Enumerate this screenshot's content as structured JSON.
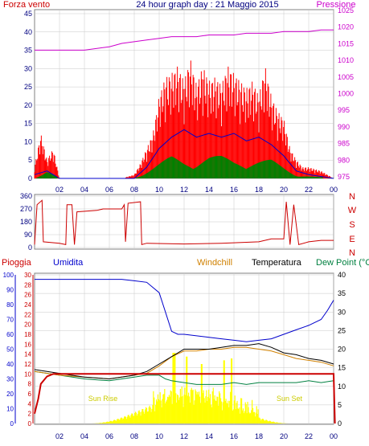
{
  "header": {
    "left": "Forza vento",
    "center": "24 hour graph day : 21 Maggio 2015",
    "right": "Pressione"
  },
  "x_ticks": [
    "02",
    "04",
    "06",
    "08",
    "10",
    "12",
    "14",
    "16",
    "18",
    "20",
    "22",
    "00"
  ],
  "colors": {
    "wind": "#ff0000",
    "gust": "#ff0000",
    "avg": "#0000cc",
    "green": "#008000",
    "pressure": "#cc00cc",
    "dir": "#cc0000",
    "temp": "#000000",
    "windchill": "#d08000",
    "dew": "#008040",
    "humidity": "#0000cc",
    "rain": "#cc0000",
    "sun": "#ffff00",
    "frame": "#c00000",
    "grid": "#c8c8c8",
    "axis_text": "#000080"
  },
  "panels": [
    {
      "id": "wind",
      "left_ticks": [
        "45",
        "40",
        "35",
        "30",
        "25",
        "20",
        "15",
        "10",
        "5",
        "0"
      ],
      "right_ticks": [
        "1025",
        "1020",
        "1015",
        "1010",
        "1005",
        "1000",
        "995",
        "990",
        "985",
        "980",
        "975"
      ]
    },
    {
      "id": "direction",
      "left_ticks": [
        "360",
        "270",
        "180",
        "90",
        "0"
      ],
      "right_letters": [
        "N",
        "W",
        "S",
        "E",
        "N"
      ]
    },
    {
      "id": "meteo",
      "title_pioggia": "Pioggia",
      "title_umidita": "Umidita",
      "title_windchill": "Windchill",
      "title_temperatura": "Temperatura",
      "title_dew": "Dew Point (°C",
      "humidity_ticks": [
        "100",
        "90",
        "80",
        "70",
        "60",
        "50",
        "40",
        "30",
        "20",
        "10",
        "0"
      ],
      "rain_ticks": [
        "30",
        "28",
        "26",
        "24",
        "22",
        "20",
        "18",
        "16",
        "14",
        "12",
        "10",
        "8",
        "6",
        "4",
        "2",
        "0"
      ],
      "temp_ticks": [
        "40",
        "35",
        "30",
        "25",
        "20",
        "15",
        "10",
        "5",
        "0"
      ],
      "annotations": [
        "Sun Rise",
        "Sun Set"
      ]
    }
  ],
  "chart_data": [
    {
      "type": "line",
      "name": "wind_pressure",
      "x_unit": "hour",
      "ylim": [
        0,
        45
      ],
      "y2lim": [
        975,
        1025
      ],
      "series": [
        {
          "name": "Forza vento",
          "points": [
            [
              0,
              3
            ],
            [
              0.5,
              12
            ],
            [
              1,
              5
            ],
            [
              1.5,
              8
            ],
            [
              2,
              0
            ],
            [
              3,
              0
            ],
            [
              5,
              0
            ],
            [
              7,
              0
            ],
            [
              8,
              1
            ],
            [
              8.5,
              4
            ],
            [
              9,
              8
            ],
            [
              9.5,
              12
            ],
            [
              10,
              22
            ],
            [
              10.5,
              27
            ],
            [
              11,
              28
            ],
            [
              11.5,
              30
            ],
            [
              12,
              26
            ],
            [
              12.5,
              32
            ],
            [
              13,
              25
            ],
            [
              13.5,
              30
            ],
            [
              14,
              26
            ],
            [
              14.5,
              27
            ],
            [
              15,
              25
            ],
            [
              15.5,
              30
            ],
            [
              16,
              28
            ],
            [
              16.5,
              26
            ],
            [
              17,
              24
            ],
            [
              17.5,
              26
            ],
            [
              18,
              22
            ],
            [
              18.5,
              30
            ],
            [
              19,
              22
            ],
            [
              19.5,
              18
            ],
            [
              20,
              16
            ],
            [
              20.5,
              8
            ],
            [
              21,
              5
            ],
            [
              21.5,
              3
            ],
            [
              22,
              3
            ],
            [
              23,
              2
            ],
            [
              24,
              0
            ]
          ]
        },
        {
          "name": "Media",
          "points": [
            [
              0,
              1
            ],
            [
              1,
              2
            ],
            [
              2,
              0
            ],
            [
              8,
              0
            ],
            [
              9,
              3
            ],
            [
              10,
              8
            ],
            [
              11,
              11
            ],
            [
              12,
              13
            ],
            [
              13,
              11
            ],
            [
              14,
              12
            ],
            [
              15,
              11
            ],
            [
              16,
              12
            ],
            [
              17,
              10
            ],
            [
              18,
              11
            ],
            [
              19,
              9
            ],
            [
              20,
              6
            ],
            [
              21,
              2
            ],
            [
              22,
              1
            ],
            [
              24,
              0
            ]
          ]
        },
        {
          "name": "Verde",
          "points": [
            [
              0,
              0
            ],
            [
              1,
              2
            ],
            [
              2,
              0
            ],
            [
              8,
              0
            ],
            [
              9,
              2
            ],
            [
              10,
              4
            ],
            [
              11,
              6
            ],
            [
              12,
              5
            ],
            [
              13,
              5
            ],
            [
              14,
              6
            ],
            [
              15,
              6
            ],
            [
              16,
              5
            ],
            [
              17,
              5
            ],
            [
              18,
              5
            ],
            [
              19,
              5
            ],
            [
              20,
              3
            ],
            [
              21,
              1
            ],
            [
              24,
              0
            ]
          ]
        },
        {
          "name": "Pressione",
          "points": [
            [
              0,
              1013
            ],
            [
              2,
              1013
            ],
            [
              4,
              1013
            ],
            [
              6,
              1014
            ],
            [
              7,
              1015
            ],
            [
              8,
              1015.5
            ],
            [
              9,
              1016
            ],
            [
              10,
              1016.5
            ],
            [
              11,
              1017
            ],
            [
              12,
              1017
            ],
            [
              13,
              1017
            ],
            [
              14,
              1017.5
            ],
            [
              15,
              1017.5
            ],
            [
              16,
              1017.5
            ],
            [
              17,
              1018
            ],
            [
              18,
              1018
            ],
            [
              19,
              1018
            ],
            [
              20,
              1018.5
            ],
            [
              21,
              1018.5
            ],
            [
              22,
              1018.5
            ],
            [
              23,
              1019
            ],
            [
              24,
              1019
            ]
          ]
        }
      ]
    },
    {
      "type": "line",
      "name": "direction",
      "x_unit": "hour",
      "ylim": [
        0,
        360
      ],
      "series": [
        {
          "name": "Direzione",
          "points": [
            [
              0,
              20
            ],
            [
              0.2,
              300
            ],
            [
              0.6,
              330
            ],
            [
              0.7,
              40
            ],
            [
              2,
              30
            ],
            [
              2.5,
              20
            ],
            [
              2.6,
              300
            ],
            [
              3,
              300
            ],
            [
              3.2,
              20
            ],
            [
              3.4,
              250
            ],
            [
              5,
              260
            ],
            [
              5.5,
              270
            ],
            [
              7,
              270
            ],
            [
              7.2,
              300
            ],
            [
              7.3,
              40
            ],
            [
              7.5,
              310
            ],
            [
              8.5,
              320
            ],
            [
              8.6,
              20
            ],
            [
              9,
              30
            ],
            [
              12,
              25
            ],
            [
              15,
              30
            ],
            [
              18,
              40
            ],
            [
              19,
              60
            ],
            [
              20,
              60
            ],
            [
              20.2,
              320
            ],
            [
              20.5,
              20
            ],
            [
              20.8,
              300
            ],
            [
              21.2,
              20
            ],
            [
              22,
              40
            ],
            [
              23,
              50
            ],
            [
              24,
              50
            ]
          ]
        }
      ]
    },
    {
      "type": "line",
      "name": "meteo",
      "x_unit": "hour",
      "ylim_humidity": [
        0,
        100
      ],
      "ylim_rain": [
        0,
        30
      ],
      "ylim_temp": [
        0,
        40
      ],
      "series": [
        {
          "name": "Umidita",
          "points": [
            [
              0,
              97
            ],
            [
              2,
              97
            ],
            [
              4,
              97
            ],
            [
              6,
              97
            ],
            [
              7,
              97
            ],
            [
              8,
              96
            ],
            [
              9,
              95
            ],
            [
              10,
              88
            ],
            [
              10.5,
              75
            ],
            [
              11,
              62
            ],
            [
              11.5,
              60
            ],
            [
              12,
              60
            ],
            [
              14,
              58
            ],
            [
              15,
              57
            ],
            [
              16,
              56
            ],
            [
              17,
              55
            ],
            [
              18,
              56
            ],
            [
              19,
              57
            ],
            [
              20,
              60
            ],
            [
              21,
              63
            ],
            [
              22,
              66
            ],
            [
              23,
              70
            ],
            [
              23.5,
              76
            ],
            [
              24,
              83
            ]
          ]
        },
        {
          "name": "Temperatura",
          "points": [
            [
              0,
              14.5
            ],
            [
              2,
              13.5
            ],
            [
              4,
              12.5
            ],
            [
              6,
              12
            ],
            [
              8,
              13
            ],
            [
              9,
              14
            ],
            [
              10,
              16
            ],
            [
              11,
              18
            ],
            [
              12,
              20
            ],
            [
              13,
              20
            ],
            [
              14,
              20
            ],
            [
              15,
              20.5
            ],
            [
              16,
              21
            ],
            [
              17,
              21
            ],
            [
              18,
              21.5
            ],
            [
              19,
              20.5
            ],
            [
              20,
              19
            ],
            [
              21,
              18.5
            ],
            [
              22,
              17.5
            ],
            [
              23,
              17
            ],
            [
              24,
              16
            ]
          ]
        },
        {
          "name": "Windchill",
          "points": [
            [
              0,
              14
            ],
            [
              2,
              13
            ],
            [
              4,
              12.5
            ],
            [
              6,
              12
            ],
            [
              8,
              13
            ],
            [
              9,
              13.5
            ],
            [
              10,
              15.5
            ],
            [
              11,
              18
            ],
            [
              12,
              19.5
            ],
            [
              13,
              19.5
            ],
            [
              14,
              20
            ],
            [
              15,
              20
            ],
            [
              16,
              20.5
            ],
            [
              17,
              20.5
            ],
            [
              18,
              20
            ],
            [
              19,
              19.5
            ],
            [
              20,
              18.5
            ],
            [
              21,
              17.5
            ],
            [
              22,
              17
            ],
            [
              23,
              16.5
            ],
            [
              24,
              15.5
            ]
          ]
        },
        {
          "name": "Dew Point",
          "points": [
            [
              0,
              14
            ],
            [
              2,
              13
            ],
            [
              4,
              12
            ],
            [
              6,
              11.5
            ],
            [
              8,
              12.5
            ],
            [
              9,
              13
            ],
            [
              10,
              13
            ],
            [
              10.5,
              12
            ],
            [
              11,
              11.5
            ],
            [
              12,
              11
            ],
            [
              13,
              10.5
            ],
            [
              14,
              10.5
            ],
            [
              15,
              10.5
            ],
            [
              16,
              11
            ],
            [
              17,
              10.5
            ],
            [
              18,
              11
            ],
            [
              19,
              11
            ],
            [
              20,
              11
            ],
            [
              21,
              11
            ],
            [
              22,
              11.5
            ],
            [
              23,
              11
            ],
            [
              24,
              11.5
            ]
          ]
        },
        {
          "name": "Pioggia",
          "points": [
            [
              0,
              2
            ],
            [
              0.3,
              5
            ],
            [
              0.5,
              8
            ],
            [
              1,
              9.5
            ],
            [
              1.5,
              10
            ],
            [
              3,
              10
            ],
            [
              4,
              10
            ],
            [
              6,
              10
            ],
            [
              9,
              10
            ],
            [
              10,
              10
            ],
            [
              12,
              10
            ],
            [
              24,
              10
            ],
            [
              24.1,
              0
            ]
          ]
        }
      ]
    }
  ]
}
